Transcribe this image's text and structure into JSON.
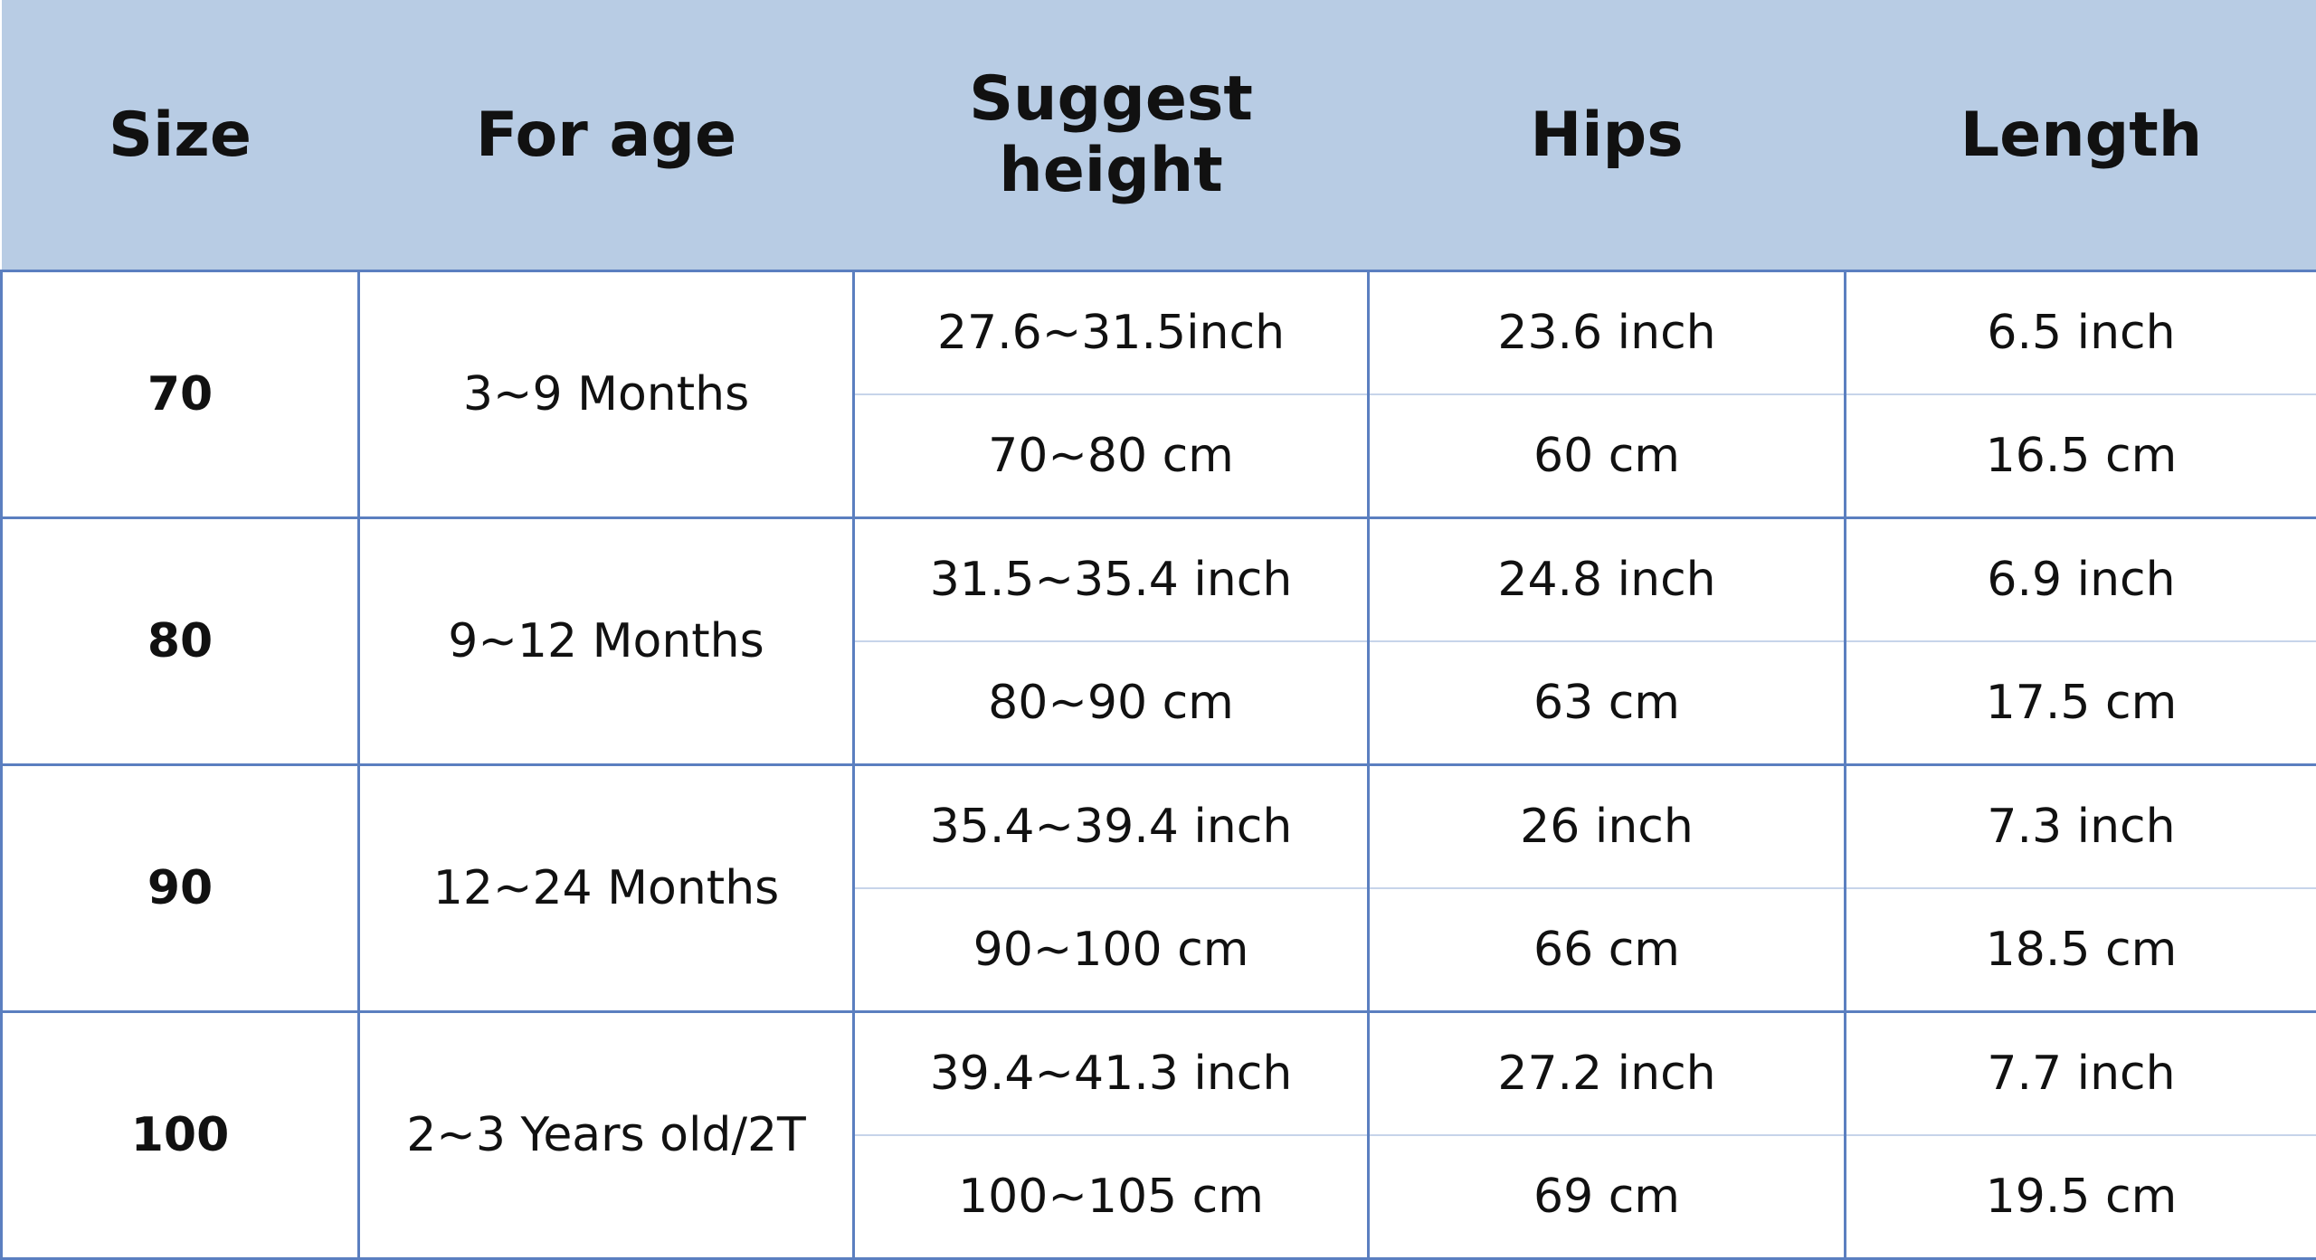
{
  "table": {
    "headers": [
      "Size",
      "For age",
      "Suggest height",
      "Hips",
      "Length"
    ],
    "rows": [
      {
        "size": "70",
        "age": "3~9 Months",
        "height": [
          "27.6~31.5inch",
          "70~80 cm"
        ],
        "hips": [
          "23.6 inch",
          "60 cm"
        ],
        "length": [
          "6.5 inch",
          "16.5 cm"
        ]
      },
      {
        "size": "80",
        "age": "9~12 Months",
        "height": [
          "31.5~35.4 inch",
          "80~90 cm"
        ],
        "hips": [
          "24.8 inch",
          "63 cm"
        ],
        "length": [
          "6.9 inch",
          "17.5 cm"
        ]
      },
      {
        "size": "90",
        "age": "12~24 Months",
        "height": [
          "35.4~39.4 inch",
          "90~100 cm"
        ],
        "hips": [
          "26 inch",
          "66 cm"
        ],
        "length": [
          "7.3 inch",
          "18.5 cm"
        ]
      },
      {
        "size": "100",
        "age": "2~3 Years old/2T",
        "height": [
          "39.4~41.3 inch",
          "100~105 cm"
        ],
        "hips": [
          "27.2 inch",
          "69 cm"
        ],
        "length": [
          "7.7 inch",
          "19.5 cm"
        ]
      }
    ]
  }
}
